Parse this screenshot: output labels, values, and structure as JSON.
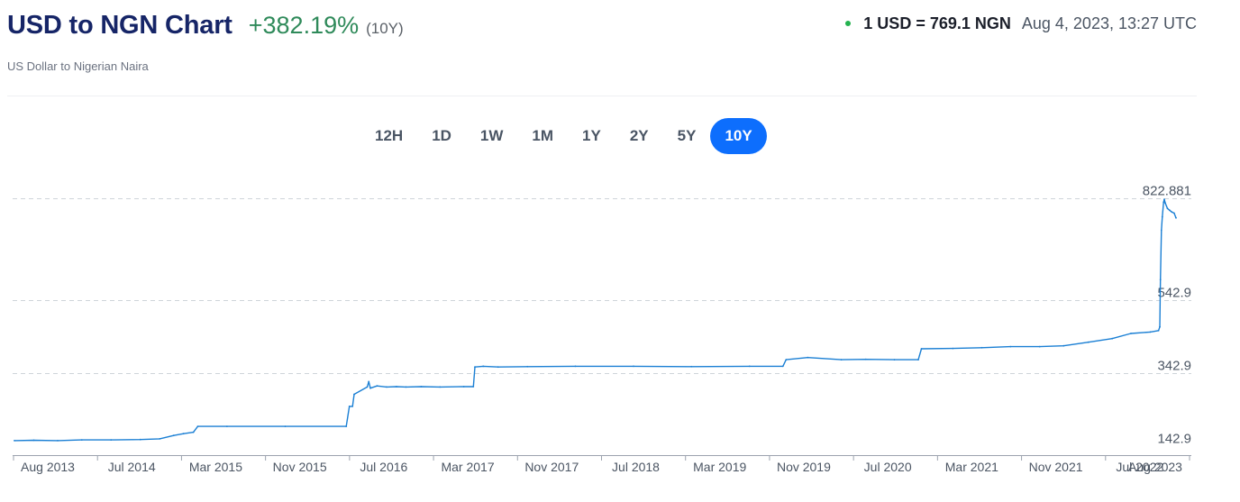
{
  "header": {
    "title": "USD to NGN Chart",
    "change": "+382.19%",
    "period": "(10Y)",
    "subtitle": "US Dollar to Nigerian Naira",
    "rate": "1 USD = 769.1 NGN",
    "timestamp": "Aug 4, 2023, 13:27 UTC"
  },
  "tabs": [
    "12H",
    "1D",
    "1W",
    "1M",
    "1Y",
    "2Y",
    "5Y",
    "10Y"
  ],
  "active_tab": "10Y",
  "colors": {
    "line": "#1a7fd4",
    "accent": "#0d6efd",
    "positive": "#2f8a5a",
    "live_dot": "#24b24f",
    "title": "#162567"
  },
  "chart_data": {
    "type": "line",
    "title": "",
    "xlabel": "",
    "ylabel": "",
    "ylim": [
      142.9,
      822.881
    ],
    "y_ticks": [
      "822.881",
      "542.9",
      "342.9",
      "142.9"
    ],
    "x_ticks": [
      "Aug 2013",
      "Jul 2014",
      "Mar 2015",
      "Nov 2015",
      "Jul 2016",
      "Mar 2017",
      "Nov 2017",
      "Jul 2018",
      "Mar 2019",
      "Nov 2019",
      "Jul 2020",
      "Mar 2021",
      "Nov 2021",
      "Jul 2022",
      "Aug 2023"
    ],
    "grid": "horizontal dashed",
    "legend": "none",
    "series": [
      {
        "points": [
          [
            "2013-08-01",
            158
          ],
          [
            "2013-10-01",
            159
          ],
          [
            "2013-12-15",
            158
          ],
          [
            "2014-03-01",
            160
          ],
          [
            "2014-06-01",
            160
          ],
          [
            "2014-09-01",
            161
          ],
          [
            "2014-11-01",
            163
          ],
          [
            "2014-12-15",
            172
          ],
          [
            "2015-01-15",
            177
          ],
          [
            "2015-02-15",
            181
          ],
          [
            "2015-03-01",
            197
          ],
          [
            "2015-06-01",
            197
          ],
          [
            "2015-12-01",
            197
          ],
          [
            "2016-06-10",
            197
          ],
          [
            "2016-06-20",
            252
          ],
          [
            "2016-06-30",
            252
          ],
          [
            "2016-07-05",
            285
          ],
          [
            "2016-08-15",
            305
          ],
          [
            "2016-08-20",
            320
          ],
          [
            "2016-08-25",
            302
          ],
          [
            "2016-09-15",
            308
          ],
          [
            "2016-10-15",
            305
          ],
          [
            "2016-11-15",
            306
          ],
          [
            "2016-12-15",
            305
          ],
          [
            "2017-02-01",
            306
          ],
          [
            "2017-04-01",
            305
          ],
          [
            "2017-06-15",
            306
          ],
          [
            "2017-07-15",
            306
          ],
          [
            "2017-07-20",
            360
          ],
          [
            "2017-08-15",
            362
          ],
          [
            "2017-10-01",
            360
          ],
          [
            "2018-01-01",
            361
          ],
          [
            "2018-06-01",
            362
          ],
          [
            "2018-12-01",
            362
          ],
          [
            "2019-06-01",
            361
          ],
          [
            "2019-12-01",
            362
          ],
          [
            "2020-03-15",
            362
          ],
          [
            "2020-03-25",
            380
          ],
          [
            "2020-06-01",
            386
          ],
          [
            "2020-09-15",
            380
          ],
          [
            "2020-12-01",
            381
          ],
          [
            "2021-03-01",
            380
          ],
          [
            "2021-05-15",
            380
          ],
          [
            "2021-05-25",
            410
          ],
          [
            "2021-09-01",
            411
          ],
          [
            "2021-12-01",
            413
          ],
          [
            "2022-03-01",
            416
          ],
          [
            "2022-06-01",
            416
          ],
          [
            "2022-08-15",
            418
          ],
          [
            "2022-11-01",
            428
          ],
          [
            "2023-01-15",
            438
          ],
          [
            "2023-03-15",
            452
          ],
          [
            "2023-05-15",
            456
          ],
          [
            "2023-06-10",
            460
          ],
          [
            "2023-06-14",
            470
          ],
          [
            "2023-06-16",
            600
          ],
          [
            "2023-06-19",
            735
          ],
          [
            "2023-06-22",
            772
          ],
          [
            "2023-06-26",
            812
          ],
          [
            "2023-06-28",
            820
          ],
          [
            "2023-07-01",
            810
          ],
          [
            "2023-07-08",
            795
          ],
          [
            "2023-07-15",
            790
          ],
          [
            "2023-07-22",
            785
          ],
          [
            "2023-07-29",
            782
          ],
          [
            "2023-08-04",
            769.1
          ]
        ]
      }
    ]
  }
}
